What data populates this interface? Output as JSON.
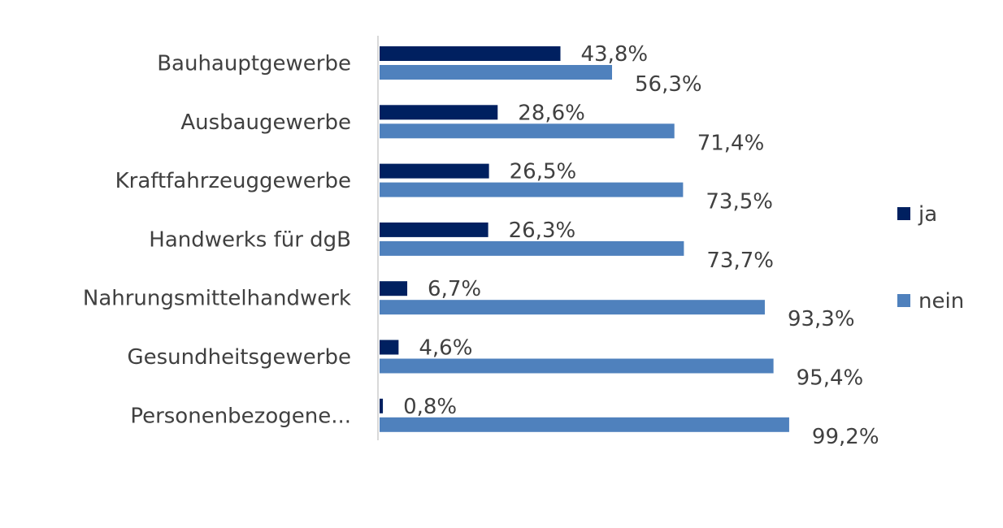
{
  "chart_data": {
    "type": "bar",
    "orientation": "horizontal",
    "categories": [
      "Bauhauptgewerbe",
      "Ausbaugewerbe",
      "Kraftfahrzeuggewerbe",
      "Handwerks für dgB",
      "Nahrungsmittelhandwerk",
      "Gesundheitsgewerbe",
      "Personenbezogene..."
    ],
    "series": [
      {
        "name": "ja",
        "color": "#002060",
        "values": [
          43.8,
          28.6,
          26.5,
          26.3,
          6.7,
          4.6,
          0.8
        ],
        "labels": [
          "43,8%",
          "28,6%",
          "26,5%",
          "26,3%",
          "6,7%",
          "4,6%",
          "0,8%"
        ]
      },
      {
        "name": "nein",
        "color": "#4F81BD",
        "values": [
          56.3,
          71.4,
          73.5,
          73.7,
          93.3,
          95.4,
          99.2
        ],
        "labels": [
          "56,3%",
          "71,4%",
          "73,5%",
          "73,7%",
          "93,3%",
          "95,4%",
          "99,2%"
        ]
      }
    ],
    "xlim": [
      0,
      100
    ],
    "grid": false,
    "legend_position": "right",
    "title": "",
    "xlabel": "",
    "ylabel": ""
  }
}
